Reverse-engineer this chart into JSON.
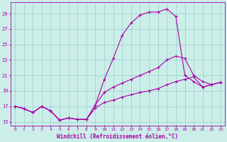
{
  "xlabel": "Windchill (Refroidissement éolien,°C)",
  "xlim": [
    -0.5,
    23.5
  ],
  "ylim": [
    14.5,
    30.5
  ],
  "yticks": [
    15,
    17,
    19,
    21,
    23,
    25,
    27,
    29
  ],
  "xticks": [
    0,
    1,
    2,
    3,
    4,
    5,
    6,
    7,
    8,
    9,
    10,
    11,
    12,
    13,
    14,
    15,
    16,
    17,
    18,
    19,
    20,
    21,
    22,
    23
  ],
  "bg_color": "#cceee8",
  "line_color": "#aa00aa",
  "grid_color": "#99cccc",
  "line1_x": [
    0,
    1,
    2,
    3,
    4,
    5,
    6,
    7,
    8,
    9,
    10,
    11,
    12,
    13,
    14,
    15,
    16,
    17,
    18,
    19,
    20,
    21,
    22,
    23
  ],
  "line1_y": [
    17.0,
    16.7,
    16.2,
    17.0,
    16.4,
    15.2,
    15.5,
    15.3,
    15.3,
    17.2,
    20.5,
    23.2,
    26.2,
    27.8,
    28.8,
    29.2,
    29.2,
    29.6,
    28.6,
    21.0,
    20.2,
    19.5,
    19.8,
    20.1
  ],
  "line2_x": [
    0,
    1,
    2,
    3,
    4,
    5,
    6,
    7,
    8,
    9,
    10,
    11,
    12,
    13,
    14,
    15,
    16,
    17,
    18,
    19,
    20,
    21,
    22,
    23
  ],
  "line2_y": [
    17.0,
    16.7,
    16.2,
    17.0,
    16.4,
    15.2,
    15.5,
    15.3,
    15.3,
    17.2,
    18.8,
    19.5,
    20.0,
    20.5,
    21.0,
    21.5,
    22.0,
    23.0,
    23.5,
    23.2,
    21.0,
    20.2,
    19.8,
    20.1
  ],
  "line3_x": [
    0,
    1,
    2,
    3,
    4,
    5,
    6,
    7,
    8,
    9,
    10,
    11,
    12,
    13,
    14,
    15,
    16,
    17,
    18,
    19,
    20,
    21,
    22,
    23
  ],
  "line3_y": [
    17.0,
    16.7,
    16.2,
    17.0,
    16.4,
    15.2,
    15.5,
    15.3,
    15.3,
    16.8,
    17.5,
    17.8,
    18.2,
    18.5,
    18.8,
    19.0,
    19.3,
    19.8,
    20.2,
    20.5,
    20.8,
    19.5,
    19.8,
    20.1
  ]
}
